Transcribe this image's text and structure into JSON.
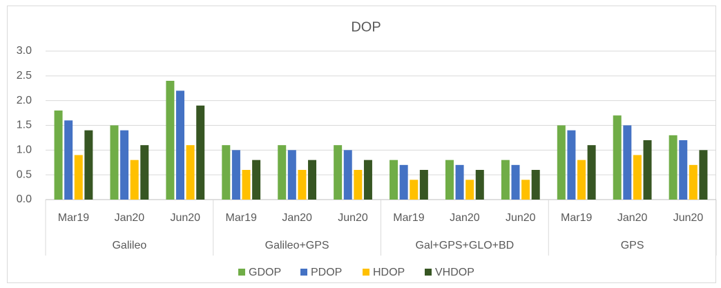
{
  "chart_data": {
    "type": "bar",
    "title": "DOP",
    "categories": [
      "Mar19",
      "Jan20",
      "Jun20",
      "Mar19",
      "Jan20",
      "Jun20",
      "Mar19",
      "Jan20",
      "Jun20",
      "Mar19",
      "Jan20",
      "Jun20"
    ],
    "groups": [
      "Galileo",
      "Galileo+GPS",
      "Gal+GPS+GLO+BD",
      "GPS"
    ],
    "series": [
      {
        "name": "GDOP",
        "color": "#70ad47",
        "values": [
          1.8,
          1.5,
          2.4,
          1.1,
          1.1,
          1.1,
          0.8,
          0.8,
          0.8,
          1.5,
          1.7,
          1.3
        ]
      },
      {
        "name": "PDOP",
        "color": "#4472c4",
        "values": [
          1.6,
          1.4,
          2.2,
          1.0,
          1.0,
          1.0,
          0.7,
          0.7,
          0.7,
          1.4,
          1.5,
          1.2
        ]
      },
      {
        "name": "HDOP",
        "color": "#ffc000",
        "values": [
          0.9,
          0.8,
          1.1,
          0.6,
          0.6,
          0.6,
          0.4,
          0.4,
          0.4,
          0.8,
          0.9,
          0.7
        ]
      },
      {
        "name": "VHDOP",
        "color": "#375623",
        "values": [
          1.4,
          1.1,
          1.9,
          0.8,
          0.8,
          0.8,
          0.6,
          0.6,
          0.6,
          1.1,
          1.2,
          1.0
        ]
      }
    ],
    "ylim": [
      0,
      3
    ],
    "yticks": [
      {
        "value": 0,
        "label": "0.0"
      },
      0.5,
      {
        "value": 1,
        "label": "1.0"
      },
      1.5,
      {
        "value": 2,
        "label": "2.0"
      },
      2.5,
      {
        "value": 3,
        "label": "3.0"
      }
    ],
    "grid": true,
    "legend": "bottom"
  }
}
